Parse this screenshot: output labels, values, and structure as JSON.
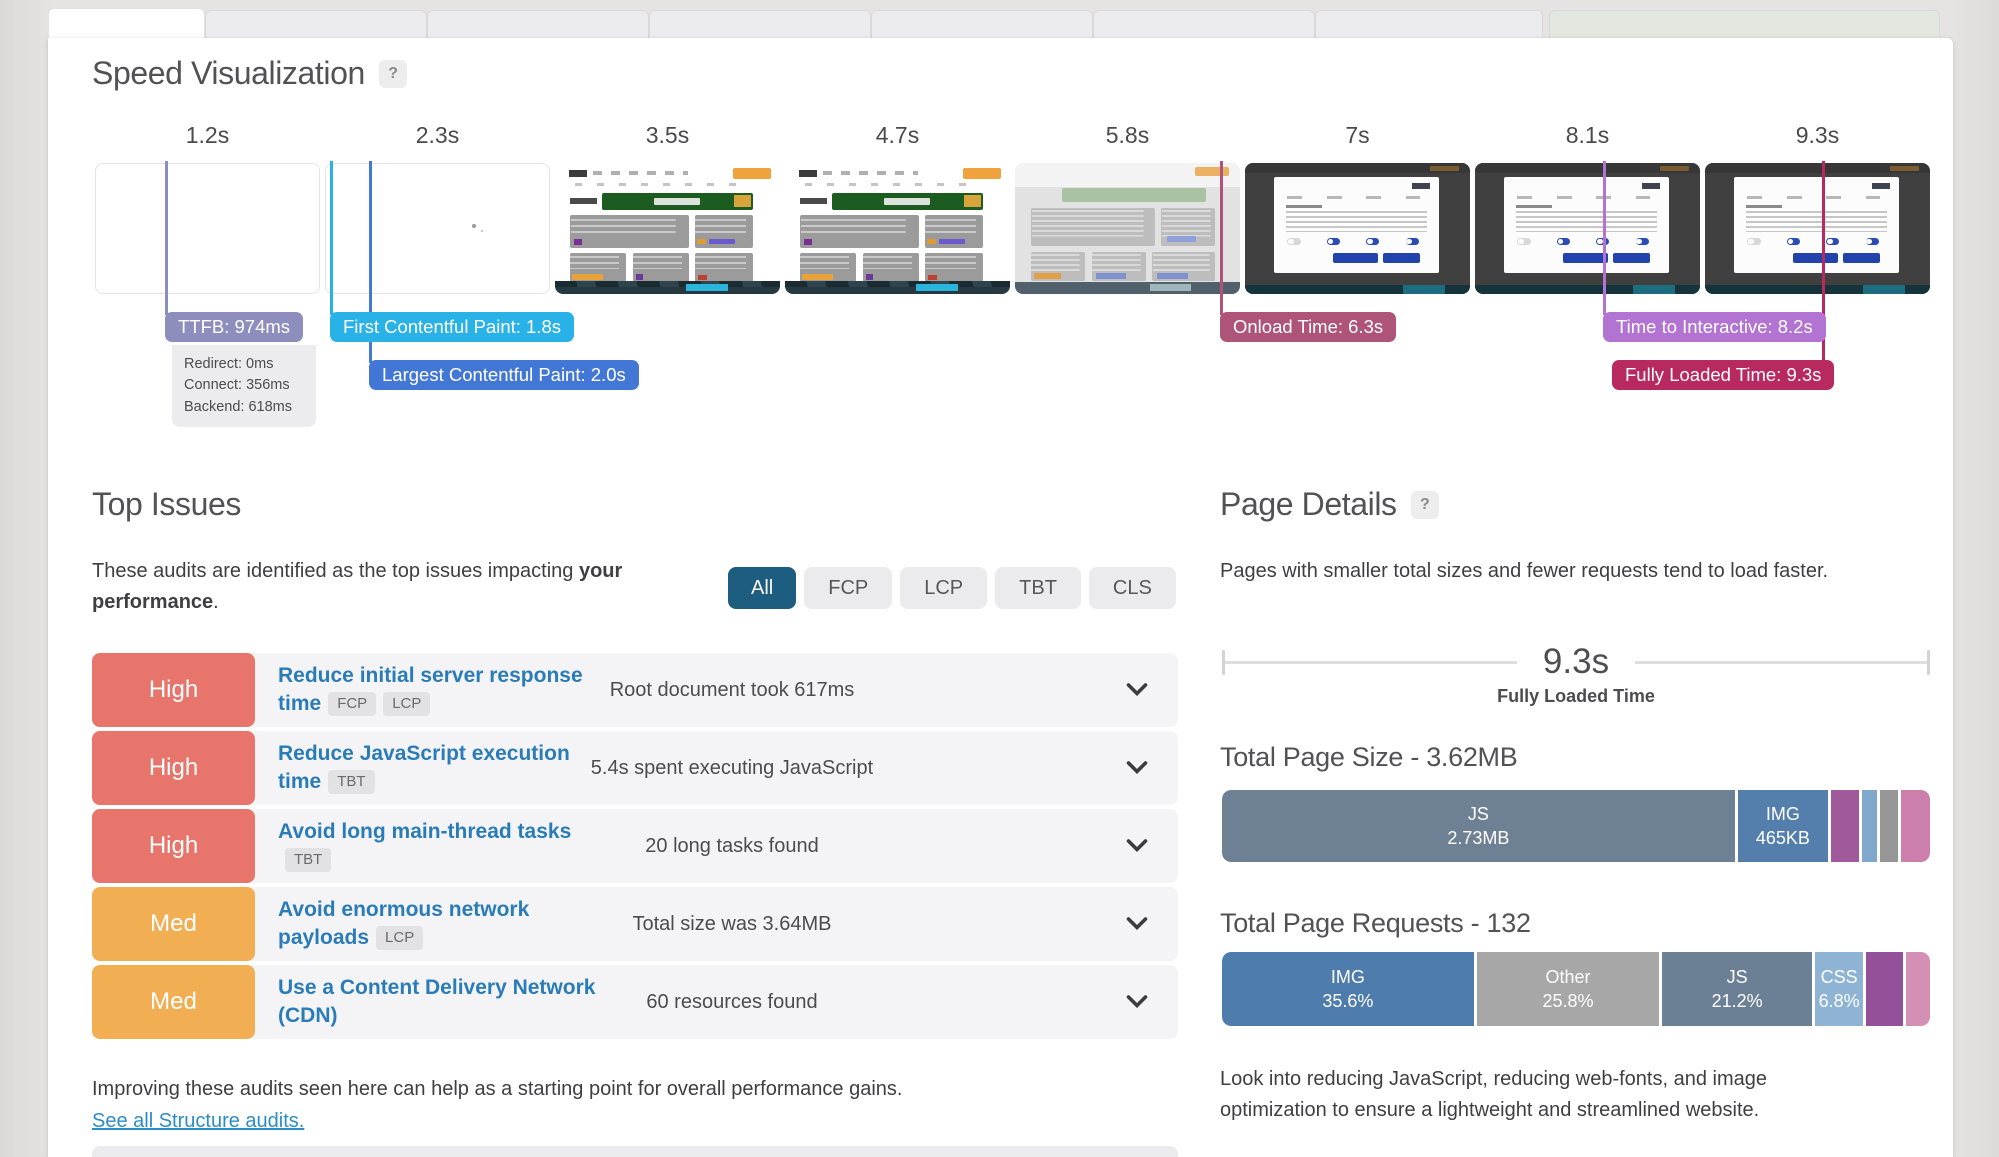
{
  "tabs_note": "cut-off report tab stubs at top, no visible labels",
  "speed_visualization": {
    "title": "Speed Visualization",
    "help": "?",
    "times": [
      "1.2s",
      "2.3s",
      "3.5s",
      "4.7s",
      "5.8s",
      "7s",
      "8.1s",
      "9.3s"
    ],
    "markers": [
      {
        "label": "TTFB: 974ms",
        "color": "#8d8dbe"
      },
      {
        "label": "First Contentful Paint: 1.8s",
        "color": "#29b2e8"
      },
      {
        "label": "Largest Contentful Paint: 2.0s",
        "color": "#4377d6"
      },
      {
        "label": "Onload Time: 6.3s",
        "color": "#ad5478"
      },
      {
        "label": "Time to Interactive: 8.2s",
        "color": "#b273d2"
      },
      {
        "label": "Fully Loaded Time: 9.3s",
        "color": "#b7295f"
      }
    ],
    "ttfb_details": [
      "Redirect: 0ms",
      "Connect: 356ms",
      "Backend: 618ms"
    ]
  },
  "top_issues": {
    "title": "Top Issues",
    "intro_normal": "These audits are identified as the top issues impacting ",
    "intro_bold": "your performance",
    "intro_suffix": ".",
    "filters": [
      "All",
      "FCP",
      "LCP",
      "TBT",
      "CLS"
    ],
    "active_filter": "All",
    "issues": [
      {
        "severity": "High",
        "title": "Reduce initial server response time",
        "tags": [
          "FCP",
          "LCP"
        ],
        "finding": "Root document took 617ms"
      },
      {
        "severity": "High",
        "title": "Reduce JavaScript execution time",
        "tags": [
          "TBT"
        ],
        "finding": "5.4s spent executing JavaScript"
      },
      {
        "severity": "High",
        "title": "Avoid long main-thread tasks",
        "tags": [
          "TBT"
        ],
        "finding": "20 long tasks found"
      },
      {
        "severity": "Med",
        "title": "Avoid enormous network payloads",
        "tags": [
          "LCP"
        ],
        "finding": "Total size was 3.64MB"
      },
      {
        "severity": "Med",
        "title": "Use a Content Delivery Network (CDN)",
        "tags": [],
        "finding": "60 resources found"
      }
    ],
    "footer": "Improving these audits seen here can help as a starting point for overall performance gains.",
    "link": "See all Structure audits."
  },
  "page_details": {
    "title": "Page Details",
    "help": "?",
    "intro": "Pages with smaller total sizes and fewer requests tend to load faster.",
    "fully_loaded": {
      "value": "9.3s",
      "label": "Fully Loaded Time"
    },
    "size_bar": {
      "title": "Total Page Size - 3.62MB",
      "segments": [
        {
          "label": "JS",
          "sublabel": "2.73MB",
          "pct": 74.0,
          "color": "#6e8093"
        },
        {
          "label": "IMG",
          "sublabel": "465KB",
          "pct": 13.0,
          "color": "#547fad"
        },
        {
          "label": "",
          "sublabel": "",
          "pct": 4.0,
          "color": "#a05a9b"
        },
        {
          "label": "",
          "sublabel": "",
          "pct": 2.2,
          "color": "#7fa8cc"
        },
        {
          "label": "",
          "sublabel": "",
          "pct": 2.6,
          "color": "#969696"
        },
        {
          "label": "",
          "sublabel": "",
          "pct": 4.2,
          "color": "#cc7fab"
        }
      ]
    },
    "requests_bar": {
      "title": "Total Page Requests - 132",
      "segments": [
        {
          "label": "IMG",
          "sublabel": "35.6%",
          "pct": 35.6,
          "color": "#4e7dad"
        },
        {
          "label": "Other",
          "sublabel": "25.8%",
          "pct": 25.8,
          "color": "#a7a7a7"
        },
        {
          "label": "JS",
          "sublabel": "21.2%",
          "pct": 21.2,
          "color": "#6b8095"
        },
        {
          "label": "CSS",
          "sublabel": "6.8%",
          "pct": 6.8,
          "color": "#8fb3d4"
        },
        {
          "label": "",
          "sublabel": "",
          "pct": 5.2,
          "color": "#93519a"
        },
        {
          "label": "",
          "sublabel": "",
          "pct": 3.4,
          "color": "#d38fb4"
        }
      ]
    },
    "advice": "Look into reducing JavaScript, reducing web-fonts, and image optimization to ensure a lightweight and streamlined website."
  },
  "colors": {
    "severity_high": "#e8756b",
    "severity_med": "#f2ae52",
    "active_filter_bg": "#1d5d80",
    "link": "#2a8dc9"
  }
}
